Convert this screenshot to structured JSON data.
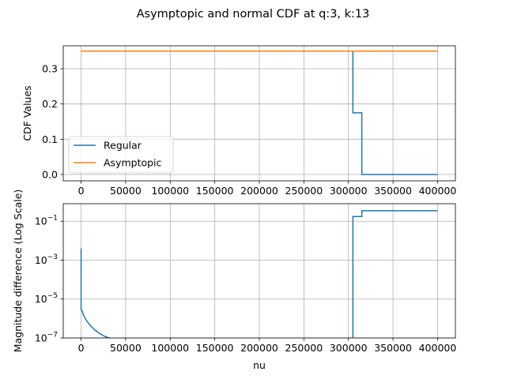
{
  "figure": {
    "title": "Asymptopic and normal CDF at q:3, k:13"
  },
  "chart_data": [
    {
      "type": "line",
      "title": "",
      "xlabel": "",
      "ylabel": "CDF Values",
      "xlim": [
        -20000,
        420000
      ],
      "ylim": [
        -0.018,
        0.365
      ],
      "x_ticks": [
        0,
        50000,
        100000,
        150000,
        200000,
        250000,
        300000,
        350000,
        400000
      ],
      "y_ticks": [
        0.0,
        0.1,
        0.2,
        0.3
      ],
      "y_tick_labels": [
        "0.0",
        "0.1",
        "0.2",
        "0.3"
      ],
      "grid": true,
      "legend": "lower-left",
      "series": [
        {
          "name": "Regular",
          "color": "#1f77b4",
          "points": [
            [
              0,
              0.35
            ],
            [
              305000,
              0.35
            ],
            [
              305000,
              0.175
            ],
            [
              315000,
              0.175
            ],
            [
              315000,
              0.0
            ],
            [
              400000,
              0.0
            ]
          ]
        },
        {
          "name": "Asymptopic",
          "color": "#ff7f0e",
          "points": [
            [
              0,
              0.35
            ],
            [
              400000,
              0.35
            ]
          ]
        }
      ]
    },
    {
      "type": "line",
      "title": "",
      "xlabel": "nu",
      "ylabel": "Magnitude difference (Log Scale)",
      "yscale": "log",
      "xlim": [
        -20000,
        420000
      ],
      "ylim": [
        1e-07,
        0.8
      ],
      "x_ticks": [
        0,
        50000,
        100000,
        150000,
        200000,
        250000,
        300000,
        350000,
        400000
      ],
      "y_ticks": [
        1e-07,
        1e-05,
        0.001,
        0.1
      ],
      "grid": true,
      "series": [
        {
          "name": "",
          "color": "#1f77b4",
          "points": [
            [
              0,
              0.004
            ],
            [
              0,
              3e-06
            ],
            [
              1000,
              2.5e-06
            ],
            [
              3000,
              1.4e-06
            ],
            [
              6000,
              8e-07
            ],
            [
              10000,
              4.5e-07
            ],
            [
              15000,
              2.7e-07
            ],
            [
              20000,
              1.8e-07
            ],
            [
              25000,
              1.3e-07
            ],
            [
              30000,
              1.05e-07
            ],
            [
              32000,
              1e-07
            ]
          ]
        },
        {
          "name": "",
          "color": "#1f77b4",
          "points": [
            [
              305000,
              1e-07
            ],
            [
              305000,
              0.175
            ],
            [
              315000,
              0.175
            ],
            [
              315000,
              0.35
            ],
            [
              400000,
              0.35
            ]
          ]
        }
      ]
    }
  ]
}
